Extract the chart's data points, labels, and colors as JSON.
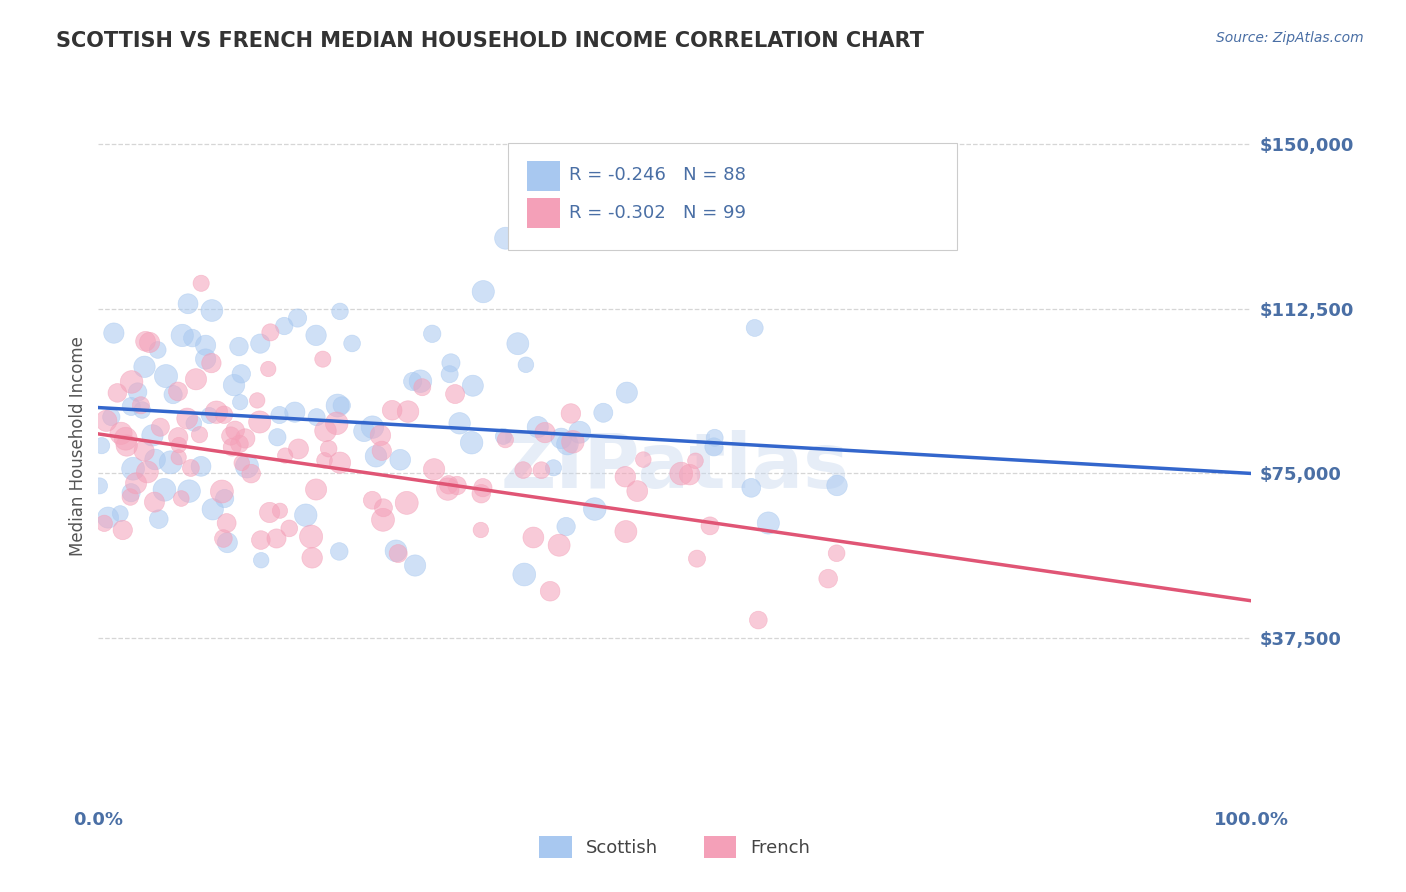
{
  "title": "SCOTTISH VS FRENCH MEDIAN HOUSEHOLD INCOME CORRELATION CHART",
  "source_text": "Source: ZipAtlas.com",
  "ylabel": "Median Household Income",
  "xlim": [
    0,
    1
  ],
  "ylim": [
    0,
    162500
  ],
  "yticks": [
    0,
    37500,
    75000,
    112500,
    150000
  ],
  "ytick_labels": [
    "",
    "$37,500",
    "$75,000",
    "$112,500",
    "$150,000"
  ],
  "xtick_labels": [
    "0.0%",
    "100.0%"
  ],
  "watermark": "ZIPatlas",
  "scottish_color": "#a8c8f0",
  "french_color": "#f4a0b8",
  "scottish_line_color": "#3366cc",
  "french_line_color": "#e05575",
  "background_color": "#ffffff",
  "grid_color": "#cccccc",
  "title_color": "#333333",
  "source_color": "#4a6fa5",
  "axis_label_color": "#555555",
  "tick_label_color": "#4a6fa5",
  "scottish_N": 88,
  "french_N": 99,
  "scottish_intercept": 90000,
  "scottish_slope": -15000,
  "french_intercept": 84000,
  "french_slope": -38000,
  "dot_size": 200
}
